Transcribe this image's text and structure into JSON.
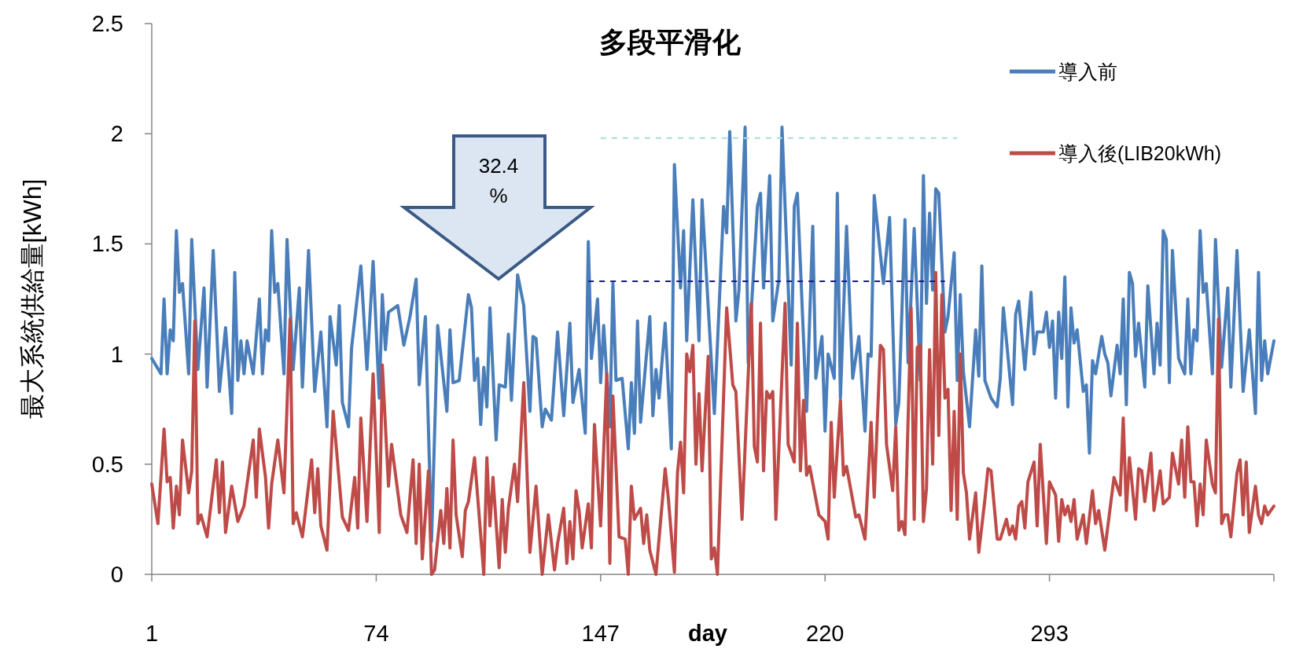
{
  "chart_data": {
    "type": "line",
    "title": "多段平滑化",
    "xlabel": "day",
    "ylabel": "最大系統供給量[kWh]",
    "xlim": [
      1,
      366
    ],
    "xticks": [
      1,
      74,
      147,
      220,
      293,
      {
        "value": 366,
        "label": null
      }
    ],
    "ylim": [
      0,
      2.5
    ],
    "yticks": [
      0,
      0.5,
      1,
      1.5,
      2,
      2.5
    ],
    "legend": "top right",
    "annotations": [
      "32.4 %"
    ],
    "series": [
      {
        "name": "導入前",
        "color": "#4a7ebb",
        "x": [
          1,
          4,
          5,
          6,
          7,
          8,
          9,
          10,
          11,
          13,
          14,
          16,
          18,
          19,
          21,
          23,
          25,
          27,
          28,
          29,
          30,
          31,
          32,
          34,
          36,
          37,
          38,
          39,
          40,
          41,
          42,
          44,
          45,
          47,
          49,
          50,
          52,
          54,
          56,
          58,
          59,
          61,
          62,
          63,
          65,
          66,
          69,
          71,
          73,
          75,
          76,
          77,
          78,
          81,
          83,
          85,
          87,
          88,
          90,
          92,
          94,
          97,
          98,
          99,
          101,
          104,
          105,
          106,
          107,
          108,
          109,
          110,
          111,
          113,
          114,
          116,
          117,
          118,
          120,
          122,
          124,
          125,
          126,
          128,
          129,
          131,
          133,
          135,
          137,
          138,
          140,
          142,
          143,
          144,
          146,
          147,
          148,
          150,
          151,
          152,
          154,
          156,
          157,
          158,
          159,
          160,
          163,
          164,
          165,
          166,
          168,
          170,
          171,
          173,
          174,
          175,
          177,
          179,
          180,
          184,
          187,
          188,
          189,
          191,
          192,
          194,
          195,
          198,
          199,
          200,
          202,
          203,
          205,
          206,
          209,
          210,
          211,
          214,
          216,
          217,
          219,
          220,
          221,
          223,
          224,
          225,
          227,
          229,
          231,
          233,
          234,
          235,
          236,
          239,
          241,
          243,
          244,
          246,
          247,
          249,
          251,
          252,
          253,
          254,
          255,
          256,
          257,
          259,
          260,
          262,
          263,
          264,
          265,
          267,
          269,
          270,
          271,
          272,
          274,
          276,
          277,
          278,
          281,
          282,
          283,
          285,
          287,
          288,
          289,
          291,
          292,
          293,
          294,
          295,
          296,
          297,
          298,
          299,
          300,
          301,
          302,
          304,
          305,
          306,
          307,
          308,
          310,
          311,
          312,
          313,
          315,
          316,
          317,
          318,
          319,
          320,
          321,
          322,
          324,
          325,
          327,
          328,
          329,
          330,
          331,
          332,
          333,
          335,
          337,
          338,
          339,
          340,
          341,
          342,
          343,
          344,
          346,
          347,
          349,
          351,
          352,
          354,
          356,
          358,
          360,
          361,
          362,
          363,
          364,
          366
        ],
        "values": [
          0.98,
          0.91,
          1.25,
          0.91,
          1.11,
          1.06,
          1.56,
          1.28,
          1.32,
          0.91,
          1.52,
          0.93,
          1.3,
          0.85,
          1.47,
          0.83,
          1.12,
          0.73,
          1.37,
          0.88,
          1.06,
          0.91,
          1.06,
          0.91,
          1.25,
          0.91,
          1.11,
          1.06,
          1.56,
          1.28,
          1.32,
          0.91,
          1.52,
          0.93,
          1.3,
          0.85,
          1.47,
          0.83,
          1.1,
          0.67,
          1.17,
          0.95,
          1.22,
          0.78,
          0.67,
          1.03,
          1.4,
          0.93,
          1.42,
          0.8,
          1.27,
          1.02,
          1.19,
          1.22,
          1.04,
          1.17,
          1.34,
          0.86,
          1.17,
          0.15,
          1.13,
          0.74,
          1.11,
          0.87,
          0.88,
          1.27,
          1.21,
          0.88,
          0.98,
          0.68,
          0.94,
          0.76,
          1.21,
          0.61,
          0.86,
          0.85,
          1.09,
          0.79,
          1.36,
          1.22,
          0.74,
          1.08,
          1.07,
          0.67,
          0.75,
          0.7,
          1.1,
          0.72,
          1.14,
          0.78,
          0.93,
          0.64,
          1.51,
          0.98,
          1.25,
          0.87,
          1.13,
          0.67,
          1.32,
          0.88,
          0.89,
          0.57,
          0.87,
          0.64,
          1.15,
          0.69,
          1.17,
          0.72,
          0.93,
          0.8,
          1.14,
          0.57,
          1.86,
          1.3,
          1.56,
          1.06,
          1.7,
          1.06,
          1.7,
          0.73,
          1.67,
          1.55,
          2.01,
          1.15,
          1.29,
          2.03,
          0.96,
          1.67,
          1.73,
          1.3,
          1.81,
          1.15,
          1.34,
          2.03,
          0.95,
          1.67,
          1.73,
          0.74,
          1.58,
          0.89,
          1.08,
          0.65,
          1.0,
          0.89,
          1.73,
          0.8,
          1.58,
          0.89,
          1.08,
          0.65,
          1.0,
          0.99,
          1.72,
          1.32,
          1.62,
          0.68,
          0.78,
          1.61,
          0.96,
          1.57,
          0.88,
          1.81,
          1.23,
          1.64,
          1.29,
          1.75,
          1.73,
          1.1,
          1.17,
          1.46,
          0.88,
          1.27,
          0.92,
          0.67,
          1.11,
          0.9,
          1.4,
          0.88,
          0.8,
          0.76,
          0.89,
          1.21,
          0.77,
          1.18,
          1.24,
          0.93,
          1.28,
          1.0,
          1.1,
          1.1,
          1.19,
          1.03,
          1.15,
          0.8,
          1.19,
          0.98,
          1.35,
          0.76,
          1.21,
          1.05,
          1.11,
          0.83,
          0.86,
          0.55,
          0.97,
          0.91,
          1.08,
          1.0,
          0.96,
          0.81,
          1.04,
          0.91,
          1.25,
          0.77,
          1.37,
          1.32,
          0.99,
          1.14,
          0.85,
          1.31,
          0.91,
          1.14,
          0.95,
          1.56,
          1.52,
          0.87,
          1.47,
          0.98,
          0.91,
          1.25,
          0.91,
          1.11,
          1.06,
          1.56,
          1.28,
          1.32,
          0.91,
          1.52,
          0.94,
          1.3,
          0.85,
          1.47,
          0.83,
          1.11,
          0.73,
          1.37,
          0.88,
          1.06,
          0.91,
          1.06
        ]
      },
      {
        "name": "導入後(LIB20kWh)",
        "color": "#be4b48",
        "x": [
          1,
          3,
          5,
          6,
          7,
          8,
          9,
          10,
          11,
          13,
          14,
          15,
          16,
          17,
          19,
          22,
          23,
          24,
          25,
          27,
          29,
          31,
          34,
          35,
          36,
          38,
          39,
          40,
          42,
          44,
          46,
          47,
          48,
          50,
          53,
          54,
          55,
          56,
          58,
          60,
          63,
          65,
          67,
          68,
          69,
          71,
          73,
          75,
          76,
          78,
          79,
          82,
          84,
          86,
          87,
          88,
          89,
          91,
          92,
          93,
          95,
          96,
          97,
          98,
          99,
          100,
          102,
          103,
          104,
          106,
          109,
          110,
          111,
          112,
          114,
          115,
          116,
          117,
          119,
          120,
          122,
          124,
          126,
          128,
          130,
          132,
          133,
          135,
          136,
          137,
          138,
          139,
          140,
          141,
          143,
          144,
          145,
          147,
          149,
          150,
          151,
          153,
          155,
          156,
          157,
          158,
          160,
          161,
          162,
          163,
          165,
          168,
          169,
          171,
          172,
          173,
          174,
          175,
          176,
          177,
          178,
          179,
          180,
          182,
          183,
          184,
          185,
          188,
          190,
          191,
          193,
          196,
          197,
          198,
          199,
          200,
          201,
          202,
          203,
          204,
          207,
          208,
          210,
          211,
          212,
          213,
          214,
          215,
          218,
          220,
          221,
          222,
          223,
          225,
          226,
          227,
          230,
          231,
          233,
          235,
          236,
          238,
          239,
          240,
          242,
          243,
          244,
          245,
          246,
          248,
          249,
          250,
          251,
          252,
          253,
          254,
          255,
          256,
          257,
          258,
          259,
          260,
          261,
          262,
          263,
          264,
          265,
          266,
          267,
          269,
          270,
          272,
          273,
          274,
          276,
          277,
          279,
          280,
          281,
          282,
          283,
          284,
          285,
          286,
          288,
          289,
          290,
          292,
          293,
          295,
          296,
          297,
          298,
          299,
          300,
          301,
          302,
          304,
          305,
          307,
          308,
          309,
          311,
          314,
          316,
          317,
          318,
          319,
          321,
          322,
          323,
          324,
          326,
          327,
          329,
          330,
          332,
          333,
          335,
          336,
          337,
          338,
          339,
          340,
          341,
          342,
          343,
          344,
          346,
          347,
          348,
          349,
          350,
          351,
          352,
          354,
          355,
          356,
          357,
          358,
          360,
          361,
          362,
          363,
          364,
          366
        ],
        "values": [
          0.41,
          0.23,
          0.66,
          0.42,
          0.44,
          0.21,
          0.4,
          0.27,
          0.61,
          0.37,
          0.47,
          1.15,
          0.23,
          0.27,
          0.17,
          0.52,
          0.28,
          0.51,
          0.19,
          0.4,
          0.24,
          0.31,
          0.61,
          0.35,
          0.66,
          0.44,
          0.21,
          0.41,
          0.61,
          0.37,
          1.16,
          0.23,
          0.28,
          0.17,
          0.52,
          0.28,
          0.48,
          0.22,
          0.11,
          0.74,
          0.26,
          0.2,
          0.44,
          0.21,
          0.71,
          0.24,
          0.91,
          0.19,
          0.95,
          0.4,
          0.59,
          0.27,
          0.19,
          0.52,
          0.14,
          0.5,
          0.07,
          0.47,
          0,
          0.02,
          0.29,
          0.14,
          0.39,
          0.12,
          0.61,
          0.27,
          0.08,
          0.29,
          0.33,
          0.53,
          0,
          0.53,
          0.22,
          0.44,
          0.03,
          0.34,
          0.1,
          0.3,
          0.5,
          0.33,
          0.87,
          0.1,
          0.4,
          0,
          0.27,
          0.02,
          0.14,
          0.3,
          0.05,
          0.24,
          0.07,
          0.38,
          0.29,
          0.12,
          0.32,
          0.12,
          0.68,
          0.22,
          0.91,
          0.05,
          0.81,
          0.17,
          0.16,
          0,
          0.4,
          0.25,
          0.3,
          0.14,
          0.27,
          0.11,
          0,
          0.48,
          0.35,
          0.01,
          0.46,
          0.6,
          0.37,
          1.0,
          0.92,
          1.04,
          0.5,
          0.82,
          0.47,
          0.99,
          0.07,
          0.12,
          0,
          1.21,
          0.86,
          0.83,
          0.25,
          1.23,
          0.58,
          0.51,
          1.14,
          0.47,
          0.83,
          0.8,
          0.83,
          0.25,
          1.23,
          0.59,
          0.51,
          1.14,
          0.47,
          0.79,
          0.45,
          0.49,
          0.27,
          0.24,
          0.16,
          0.69,
          0.35,
          0.79,
          0.45,
          0.49,
          0.26,
          0.27,
          0.16,
          0.69,
          0.35,
          1.04,
          1.02,
          0.59,
          0.38,
          0.67,
          0.2,
          0.24,
          0.18,
          1.21,
          0.25,
          1.03,
          1.04,
          0.24,
          0.39,
          1.02,
          0.5,
          1.37,
          0.63,
          1.27,
          0.8,
          0.84,
          0.29,
          0.74,
          0.25,
          1.0,
          0.46,
          0.37,
          0.16,
          0.37,
          0.1,
          0.34,
          0.48,
          0.47,
          0.16,
          0.16,
          0.25,
          0.18,
          0.22,
          0.16,
          0.31,
          0.33,
          0.21,
          0.42,
          0.51,
          0.22,
          0.59,
          0.14,
          0.42,
          0.36,
          0.15,
          0.34,
          0.27,
          0.31,
          0.24,
          0.34,
          0.16,
          0.27,
          0.14,
          0.38,
          0.23,
          0.29,
          0.11,
          0.44,
          0.36,
          0.71,
          0.29,
          0.53,
          0.25,
          0.48,
          0.47,
          0.33,
          0.55,
          0.29,
          0.47,
          0.32,
          0.35,
          0.55,
          0.41,
          0.61,
          0.35,
          0.67,
          0.42,
          0.42,
          0.22,
          0.41,
          0.27,
          0.61,
          0.41,
          0.37,
          1.16,
          0.23,
          0.27,
          0.27,
          0.17,
          0.46,
          0.52,
          0.27,
          0.51,
          0.19,
          0.4,
          0.27,
          0.23,
          0.31,
          0.27,
          0.31
        ]
      },
      {
        "color": "#a8dcdc",
        "line_style": "dashed",
        "x": [
          147,
          263
        ],
        "values": [
          1.98,
          1.98
        ]
      },
      {
        "color": "#1a1a8c",
        "line_style": "dashed",
        "x": [
          143,
          259
        ],
        "values": [
          1.33,
          1.33
        ]
      }
    ]
  }
}
